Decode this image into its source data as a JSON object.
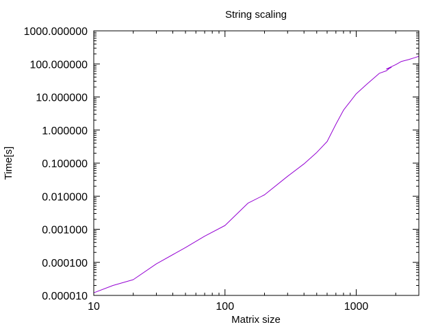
{
  "chart_data": {
    "type": "line",
    "title": "String scaling",
    "xlabel": "Matrix size",
    "ylabel": "Time[s]",
    "x_scale": "log",
    "y_scale": "log",
    "xlim": [
      10,
      3000
    ],
    "ylim": [
      1e-05,
      1000
    ],
    "x_ticks": [
      {
        "value": 10,
        "label": "10"
      },
      {
        "value": 100,
        "label": "100"
      },
      {
        "value": 1000,
        "label": "1000"
      }
    ],
    "y_ticks": [
      {
        "value": 1e-05,
        "label": "0.000010"
      },
      {
        "value": 0.0001,
        "label": "0.000100"
      },
      {
        "value": 0.001,
        "label": "0.001000"
      },
      {
        "value": 0.01,
        "label": "0.010000"
      },
      {
        "value": 0.1,
        "label": "0.100000"
      },
      {
        "value": 1,
        "label": "1.000000"
      },
      {
        "value": 10,
        "label": "10.000000"
      },
      {
        "value": 100,
        "label": "100.000000"
      },
      {
        "value": 1000,
        "label": "1000.000000"
      }
    ],
    "grid": false,
    "legend": false,
    "series": [
      {
        "color": "#9400d3",
        "x": [
          10,
          14,
          20,
          30,
          50,
          70,
          100,
          150,
          200,
          300,
          400,
          500,
          600,
          700,
          800,
          1000,
          1200,
          1500,
          1700,
          1800,
          1850,
          1800,
          1700,
          2000,
          2200,
          2500,
          2800,
          3000
        ],
        "y": [
          1.2e-05,
          2e-05,
          3e-05,
          9e-05,
          0.00028,
          0.00062,
          0.0013,
          0.0062,
          0.011,
          0.04,
          0.095,
          0.21,
          0.45,
          1.5,
          4.0,
          12.5,
          24,
          52,
          62,
          75,
          79,
          74,
          70,
          95,
          118,
          135,
          155,
          170
        ]
      }
    ]
  }
}
